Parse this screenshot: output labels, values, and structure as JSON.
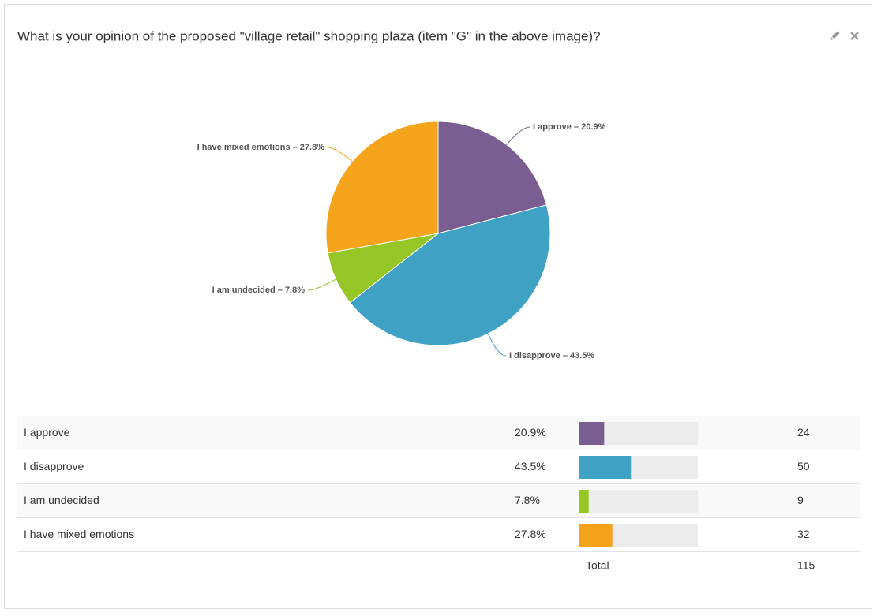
{
  "title": "What is your opinion of the proposed \"village retail\" shopping plaza (item \"G\" in the above image)?",
  "chart_data": {
    "type": "pie",
    "categories": [
      "I approve",
      "I disapprove",
      "I am undecided",
      "I have mixed emotions"
    ],
    "values": [
      20.9,
      43.5,
      7.8,
      27.8
    ],
    "value_labels": [
      "I approve – 20.9%",
      "I disapprove – 43.5%",
      "I am undecided – 7.8%",
      "I have mixed emotions – 27.8%"
    ],
    "colors": [
      "#7b5e91",
      "#3fa2c4",
      "#95c626",
      "#f5a31a"
    ]
  },
  "table": {
    "rows": [
      {
        "label": "I approve",
        "percent": "20.9%",
        "count": "24"
      },
      {
        "label": "I disapprove",
        "percent": "43.5%",
        "count": "50"
      },
      {
        "label": "I am undecided",
        "percent": "7.8%",
        "count": "9"
      },
      {
        "label": "I have mixed emotions",
        "percent": "27.8%",
        "count": "32"
      }
    ],
    "total_label": "Total",
    "total": "115"
  }
}
